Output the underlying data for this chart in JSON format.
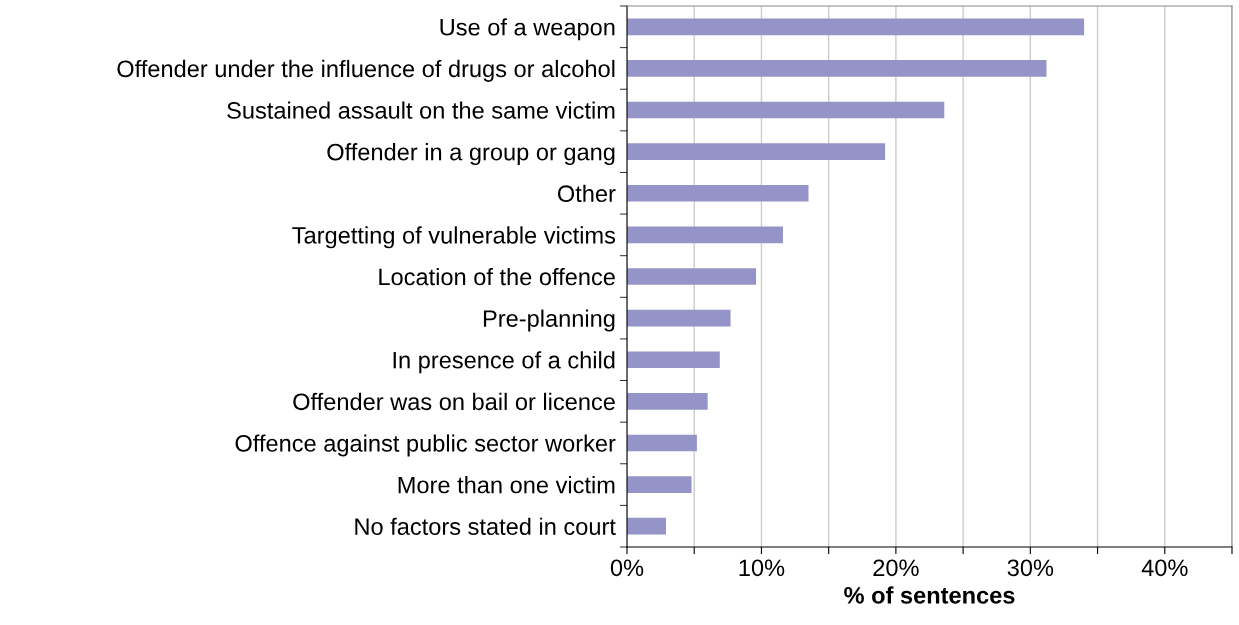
{
  "chart_data": {
    "type": "bar",
    "orientation": "horizontal",
    "xlabel": "% of sentences",
    "categories": [
      "Use of a weapon",
      "Offender under the influence of drugs or alcohol",
      "Sustained assault on the same victim",
      "Offender in a group or gang",
      "Other",
      "Targetting of vulnerable victims",
      "Location of the offence",
      "Pre-planning",
      "In presence of a child",
      "Offender was on bail or licence",
      "Offence against public sector worker",
      "More than one victim",
      "No factors stated in court"
    ],
    "values": [
      34.0,
      31.2,
      23.6,
      19.2,
      13.5,
      11.6,
      9.6,
      7.7,
      6.9,
      6.0,
      5.2,
      4.8,
      2.9
    ],
    "color": "#9494c8",
    "xlim": [
      0,
      45
    ],
    "xticks": [
      {
        "value": 0,
        "label": "0%"
      },
      {
        "value": 5,
        "label": null
      },
      {
        "value": 10,
        "label": "10%"
      },
      {
        "value": 15,
        "label": null
      },
      {
        "value": 20,
        "label": "20%"
      },
      {
        "value": 25,
        "label": null
      },
      {
        "value": 30,
        "label": "30%"
      },
      {
        "value": 35,
        "label": null
      },
      {
        "value": 40,
        "label": "40%"
      },
      {
        "value": 45,
        "label": null
      }
    ],
    "grid": "x"
  }
}
